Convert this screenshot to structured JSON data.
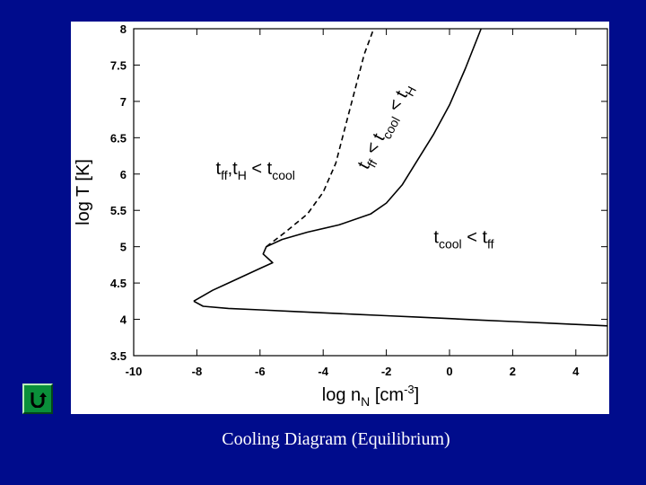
{
  "caption": "Cooling Diagram (Equilibrium)",
  "nav": {
    "back_icon": "u-turn-return-icon"
  },
  "colors": {
    "background": "#000c8c",
    "panel": "#ffffff",
    "line": "#000000",
    "button": "#0a8f3a"
  },
  "chart_data": {
    "type": "line",
    "title": "",
    "xlabel": {
      "main": "log n",
      "sub": "N",
      "unit_prefix": " [cm",
      "unit_sup": "-3",
      "unit_suffix": "]"
    },
    "ylabel": "log T [K]",
    "xlim": [
      -10,
      5
    ],
    "ylim": [
      3.5,
      8
    ],
    "x_ticks": [
      "-10",
      "-8",
      "-6",
      "-4",
      "-2",
      "0",
      "2",
      "4"
    ],
    "y_ticks": [
      "3.5",
      "4",
      "4.5",
      "5",
      "5.5",
      "6",
      "6.5",
      "7",
      "7.5",
      "8"
    ],
    "grid": false,
    "series": [
      {
        "style": "solid",
        "x": [
          -8.1,
          -7.5,
          -7.0,
          -6.5,
          -6.0,
          -5.6,
          -5.9,
          -5.8,
          -5.3,
          -4.5,
          -3.5,
          -2.5,
          -2.0,
          -1.5,
          -1.0,
          -0.5,
          0.0,
          0.5,
          1.0
        ],
        "y": [
          4.25,
          4.4,
          4.5,
          4.6,
          4.7,
          4.78,
          4.9,
          5.0,
          5.1,
          5.2,
          5.3,
          5.45,
          5.6,
          5.85,
          6.2,
          6.55,
          6.95,
          7.45,
          8.0
        ]
      },
      {
        "style": "solid",
        "x": [
          -8.1,
          -7.8,
          -7.0,
          -6.0,
          -5.0,
          -4.0,
          -3.0,
          -2.0,
          -1.0,
          0.0,
          1.0,
          2.0,
          3.0,
          4.0,
          5.0
        ],
        "y": [
          4.25,
          4.18,
          4.15,
          4.13,
          4.11,
          4.09,
          4.07,
          4.05,
          4.03,
          4.01,
          3.99,
          3.97,
          3.95,
          3.93,
          3.91
        ]
      },
      {
        "style": "dashed",
        "x": [
          -5.8,
          -5.2,
          -4.5,
          -4.0,
          -3.6,
          -3.3,
          -3.0,
          -2.7,
          -2.4
        ],
        "y": [
          5.0,
          5.2,
          5.45,
          5.75,
          6.15,
          6.65,
          7.15,
          7.65,
          8.0
        ]
      }
    ],
    "annotations": [
      {
        "parts": [
          {
            "t": "t"
          },
          {
            "t": "ff",
            "sub": true
          },
          {
            "t": ",t"
          },
          {
            "t": "H",
            "sub": true
          },
          {
            "t": " < t"
          },
          {
            "t": "cool",
            "sub": true
          }
        ],
        "x": -7.4,
        "y": 6.0,
        "rotate": 0
      },
      {
        "parts": [
          {
            "t": "t"
          },
          {
            "t": "cool",
            "sub": true
          },
          {
            "t": " < t"
          },
          {
            "t": "ff",
            "sub": true
          }
        ],
        "x": -0.5,
        "y": 5.05,
        "rotate": 0
      },
      {
        "parts": [
          {
            "t": "t"
          },
          {
            "t": "ff",
            "sub": true
          },
          {
            "t": " < t"
          },
          {
            "t": "cool",
            "sub": true
          },
          {
            "t": " < t"
          },
          {
            "t": "H",
            "sub": true
          }
        ],
        "x": -2.6,
        "y": 6.05,
        "rotate": -62
      }
    ]
  }
}
